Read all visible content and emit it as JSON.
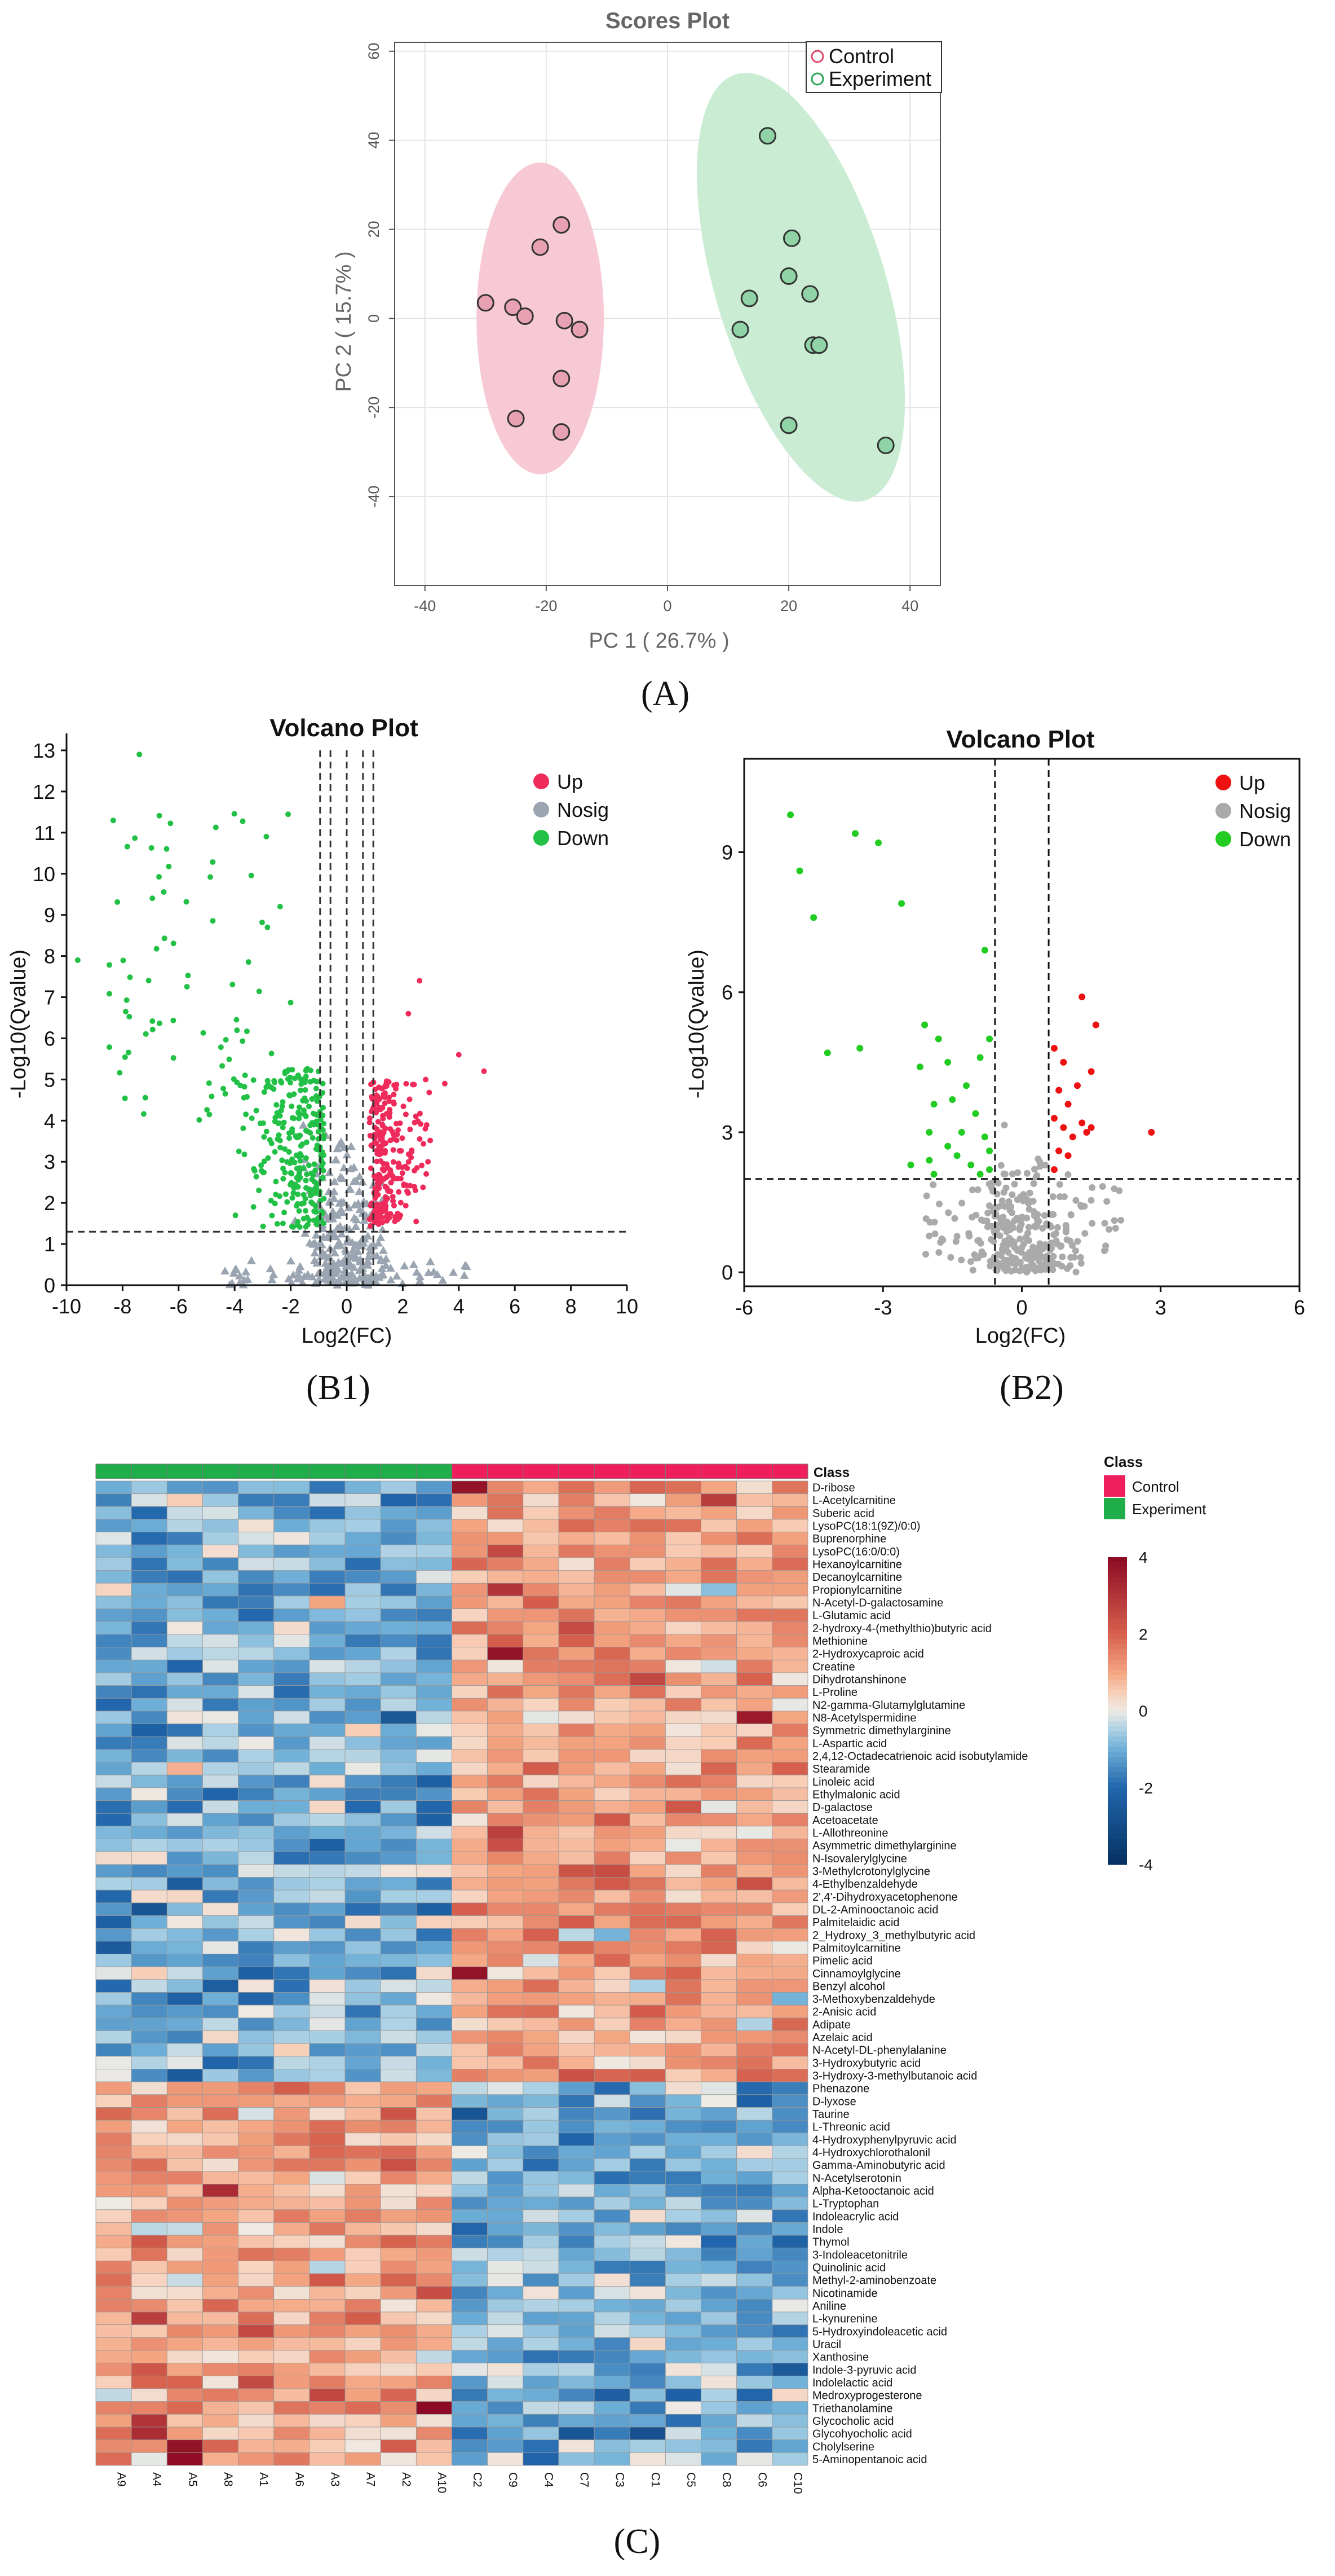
{
  "chart_data": [
    {
      "panel": "A",
      "type": "scatter",
      "title": "Scores Plot",
      "xlabel": "PC 1 ( 26.7% )",
      "ylabel": "PC 2 ( 15.7% )",
      "xlim": [
        -45,
        45
      ],
      "ylim": [
        -60,
        62
      ],
      "xticks": [
        -40,
        -20,
        0,
        20,
        40
      ],
      "yticks": [
        -40,
        -20,
        0,
        20,
        40,
        60
      ],
      "panel_label": "(A)",
      "legend": [
        {
          "name": "Control",
          "color": "#e0486c"
        },
        {
          "name": "Experiment",
          "color": "#2aa65a"
        }
      ],
      "ellipses": [
        {
          "group": "Control",
          "center": [
            -21,
            0
          ],
          "rx": 10.5,
          "ry": 35,
          "angle": 0,
          "fill": "#f7c9d4"
        },
        {
          "group": "Experiment",
          "center": [
            22,
            7
          ],
          "rx": 14,
          "ry": 50,
          "angle": 17,
          "fill": "#c9ecd3"
        }
      ],
      "series": [
        {
          "name": "Control",
          "fill": "#e8a1b3",
          "points": [
            [
              -30,
              3.5
            ],
            [
              -25.5,
              2.5
            ],
            [
              -23.5,
              0.5
            ],
            [
              -21,
              16
            ],
            [
              -17.5,
              21
            ],
            [
              -17,
              -0.5
            ],
            [
              -14.5,
              -2.5
            ],
            [
              -17.5,
              -13.5
            ],
            [
              -25,
              -22.5
            ],
            [
              -17.5,
              -25.5
            ]
          ]
        },
        {
          "name": "Experiment",
          "fill": "#8fd3a7",
          "points": [
            [
              16.5,
              41
            ],
            [
              20.5,
              18
            ],
            [
              20,
              9.5
            ],
            [
              23.5,
              5.5
            ],
            [
              13.5,
              4.5
            ],
            [
              12,
              -2.5
            ],
            [
              24,
              -6
            ],
            [
              25,
              -6
            ],
            [
              20,
              -24
            ],
            [
              36,
              -28.5
            ]
          ]
        }
      ]
    },
    {
      "panel": "B1",
      "type": "scatter",
      "title": "Volcano Plot",
      "xlabel": "Log2(FC)",
      "ylabel": "-Log10(Qvalue)",
      "xlim": [
        -10,
        10
      ],
      "ylim": [
        0,
        13
      ],
      "xticks": [
        -10,
        -8,
        -6,
        -4,
        -2,
        0,
        2,
        4,
        6,
        8,
        10
      ],
      "yticks": [
        0,
        1,
        2,
        3,
        4,
        5,
        6,
        7,
        8,
        9,
        10,
        11,
        12,
        13
      ],
      "threshold_x": [
        -1,
        0,
        1
      ],
      "threshold_x_dashed": [
        -0.58,
        0,
        0.58
      ],
      "threshold_y": 1.3,
      "panel_label": "(B1)",
      "legend": [
        {
          "name": "Up",
          "color": "#ef2b5b"
        },
        {
          "name": "Nosig",
          "color": "#9aa5b1"
        },
        {
          "name": "Down",
          "color": "#22c046"
        }
      ]
    },
    {
      "panel": "B2",
      "type": "scatter",
      "title": "Volcano Plot",
      "xlabel": "Log2(FC)",
      "ylabel": "-Log10(Qvalue)",
      "xlim": [
        -6,
        6
      ],
      "ylim": [
        -0.3,
        11
      ],
      "xticks": [
        -6,
        -3,
        0,
        3,
        6
      ],
      "yticks": [
        0,
        3,
        6,
        9
      ],
      "threshold_x": [
        -0.58,
        0.58
      ],
      "threshold_y": 2,
      "panel_label": "(B2)",
      "legend": [
        {
          "name": "Up",
          "color": "#ee1111"
        },
        {
          "name": "Nosig",
          "color": "#aaaaaa"
        },
        {
          "name": "Down",
          "color": "#22cc22"
        }
      ],
      "up_points": [
        [
          0.7,
          4.8
        ],
        [
          0.9,
          4.5
        ],
        [
          1.3,
          5.9
        ],
        [
          1.5,
          4.3
        ],
        [
          1.2,
          4.0
        ],
        [
          0.8,
          3.9
        ],
        [
          1.0,
          3.6
        ],
        [
          0.7,
          3.3
        ],
        [
          0.9,
          3.1
        ],
        [
          1.3,
          3.2
        ],
        [
          1.5,
          3.1
        ],
        [
          1.1,
          2.9
        ],
        [
          0.8,
          2.6
        ],
        [
          1.0,
          2.5
        ],
        [
          0.7,
          2.2
        ],
        [
          1.6,
          5.3
        ],
        [
          1.4,
          3.0
        ],
        [
          2.8,
          3.0
        ]
      ],
      "down_points": [
        [
          -5.0,
          9.8
        ],
        [
          -4.8,
          8.6
        ],
        [
          -4.5,
          7.6
        ],
        [
          -4.2,
          4.7
        ],
        [
          -3.6,
          9.4
        ],
        [
          -3.1,
          9.2
        ],
        [
          -3.5,
          4.8
        ],
        [
          -2.6,
          7.9
        ],
        [
          -2.1,
          5.3
        ],
        [
          -1.8,
          5.0
        ],
        [
          -0.8,
          6.9
        ],
        [
          -0.7,
          5.0
        ],
        [
          -2.2,
          4.4
        ],
        [
          -1.6,
          4.5
        ],
        [
          -1.2,
          4.0
        ],
        [
          -0.9,
          4.6
        ],
        [
          -1.5,
          3.7
        ],
        [
          -1.9,
          3.6
        ],
        [
          -1.0,
          3.4
        ],
        [
          -2.0,
          3.0
        ],
        [
          -1.3,
          3.0
        ],
        [
          -0.8,
          2.9
        ],
        [
          -0.7,
          2.6
        ],
        [
          -1.6,
          2.7
        ],
        [
          -1.1,
          2.3
        ],
        [
          -2.4,
          2.3
        ],
        [
          -1.9,
          2.1
        ],
        [
          -0.9,
          2.1
        ],
        [
          -0.7,
          2.2
        ],
        [
          -1.4,
          2.5
        ],
        [
          -2.0,
          2.4
        ]
      ]
    },
    {
      "panel": "C",
      "type": "heatmap",
      "panel_label": "(C)",
      "annotation_label": "Class",
      "legend_title": "Class",
      "class_legend": [
        {
          "name": "Control",
          "color": "#ef1f5e"
        },
        {
          "name": "Experiment",
          "color": "#1fae4a"
        }
      ],
      "color_scale": {
        "min": -4,
        "max": 4,
        "ticks": [
          4,
          2,
          0,
          -2,
          -4
        ]
      },
      "columns": [
        "A9",
        "A4",
        "A5",
        "A8",
        "A1",
        "A6",
        "A3",
        "A7",
        "A2",
        "A10",
        "C2",
        "C9",
        "C4",
        "C7",
        "C3",
        "C1",
        "C5",
        "C8",
        "C6",
        "C10"
      ],
      "column_class": [
        "Experiment",
        "Experiment",
        "Experiment",
        "Experiment",
        "Experiment",
        "Experiment",
        "Experiment",
        "Experiment",
        "Experiment",
        "Experiment",
        "Control",
        "Control",
        "Control",
        "Control",
        "Control",
        "Control",
        "Control",
        "Control",
        "Control",
        "Control"
      ],
      "rows": [
        "D-ribose",
        "L-Acetylcarnitine",
        "Suberic acid",
        "LysoPC(18:1(9Z)/0:0)",
        "Buprenorphine",
        "LysoPC(16:0/0:0)",
        "Hexanoylcarnitine",
        "Decanoylcarnitine",
        "Propionylcarnitine",
        "N-Acetyl-D-galactosamine",
        "L-Glutamic acid",
        "2-hydroxy-4-(methylthio)butyric acid",
        "Methionine",
        "2-Hydroxycaproic acid",
        "Creatine",
        "Dihydrotanshinone",
        "L-Proline",
        "N2-gamma-Glutamylglutamine",
        "N8-Acetylspermidine",
        "Symmetric dimethylarginine",
        "L-Aspartic acid",
        "2,4,12-Octadecatrienoic acid isobutylamide",
        "Stearamide",
        "Linoleic acid",
        "Ethylmalonic acid",
        "D-galactose",
        "Acetoacetate",
        "L-Allothreonine",
        "Asymmetric dimethylarginine",
        "N-Isovalerylglycine",
        "3-Methylcrotonylglycine",
        "4-Ethylbenzaldehyde",
        "2',4'-Dihydroxyacetophenone",
        "DL-2-Aminooctanoic acid",
        "Palmitelaidic acid",
        "2_Hydroxy_3_methylbutyric acid",
        "Palmitoylcarnitine",
        "Pimelic acid",
        "Cinnamoylglycine",
        "Benzyl alcohol",
        "3-Methoxybenzaldehyde",
        "2-Anisic acid",
        "Adipate",
        "Azelaic acid",
        "N-Acetyl-DL-phenylalanine",
        "3-Hydroxybutyric acid",
        "3-Hydroxy-3-methylbutanoic acid",
        "Phenazone",
        "D-lyxose",
        "Taurine",
        "L-Threonic acid",
        "4-Hydroxyphenylpyruvic acid",
        "4-Hydroxychlorothalonil",
        "Gamma-Aminobutyric acid",
        "N-Acetylserotonin",
        "Alpha-Ketooctanoic acid",
        "L-Tryptophan",
        "Indoleacrylic acid",
        "Indole",
        "Thymol",
        "3-Indoleacetonitrile",
        "Quinolinic acid",
        "Methyl-2-aminobenzoate",
        "Nicotinamide",
        "Aniline",
        "L-kynurenine",
        "5-Hydroxyindoleacetic acid",
        "Uracil",
        "Xanthosine",
        "Indole-3-pyruvic acid",
        "Indolelactic acid",
        "Medroxyprogesterone",
        "Triethanolamine",
        "Glycocholic acid",
        "Glycohyocholic acid",
        "Cholylserine",
        "5-Aminopentanoic acid"
      ],
      "up_in_control_rows": 47,
      "row_profiles": {
        "experiment_mean_top_block": -0.9,
        "control_mean_top_block": 1.1,
        "experiment_mean_bottom_block": 1.0,
        "control_mean_bottom_block": -1.0
      },
      "highlights": [
        {
          "row": "D-ribose",
          "column": "C2",
          "value": 3.8
        },
        {
          "row": "L-Acetylcarnitine",
          "column": "C8",
          "value": 2.8
        },
        {
          "row": "Propionylcarnitine",
          "column": "C9",
          "value": 3.0
        },
        {
          "row": "2-Hydroxycaproic acid",
          "column": "C9",
          "value": 3.8
        },
        {
          "row": "N8-Acetylspermidine",
          "column": "C6",
          "value": 3.6
        },
        {
          "row": "Cinnamoylglycine",
          "column": "C2",
          "value": 3.8
        },
        {
          "row": "Alpha-Ketooctanoic acid",
          "column": "A8",
          "value": 3.2
        },
        {
          "row": "Triethanolamine",
          "column": "A10",
          "value": 4.0
        },
        {
          "row": "Cholylserine",
          "column": "A5",
          "value": 3.8
        },
        {
          "row": "5-Aminopentanoic acid",
          "column": "A5",
          "value": 3.9
        },
        {
          "row": "Glycocholic acid",
          "column": "A4",
          "value": 3.0
        },
        {
          "row": "Glycohyocholic acid",
          "column": "A4",
          "value": 3.2
        }
      ]
    }
  ]
}
